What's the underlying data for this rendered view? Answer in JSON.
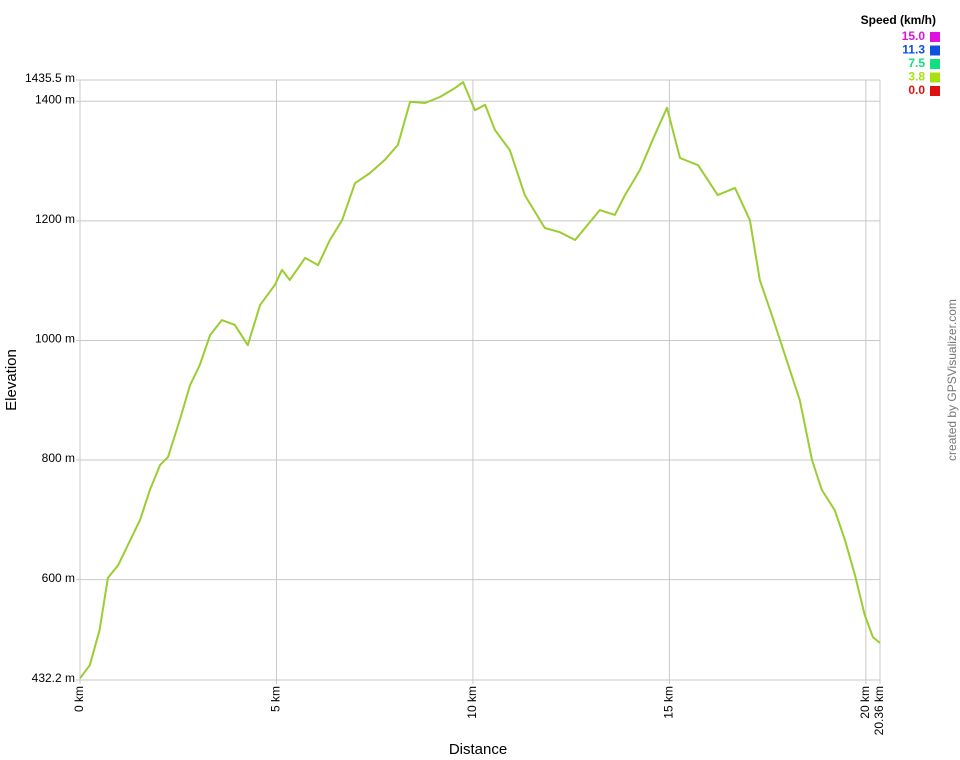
{
  "chart_data": {
    "type": "line",
    "x_label": "Distance",
    "y_label": "Elevation",
    "credit": "created by GPSVisualizer.com",
    "x": [
      0,
      0.25,
      0.5,
      0.71,
      0.97,
      1.22,
      1.53,
      1.78,
      2.04,
      2.24,
      2.54,
      2.8,
      3.05,
      3.31,
      3.61,
      3.94,
      4.27,
      4.58,
      4.96,
      5.14,
      5.34,
      5.73,
      6.06,
      6.36,
      6.67,
      7.0,
      7.38,
      7.76,
      8.09,
      8.4,
      8.78,
      9.16,
      9.54,
      9.75,
      10.05,
      10.31,
      10.56,
      10.94,
      11.32,
      11.83,
      12.21,
      12.6,
      13.23,
      13.61,
      13.87,
      14.25,
      14.63,
      14.94,
      15.27,
      15.73,
      16.23,
      16.67,
      17.05,
      17.3,
      17.61,
      17.94,
      18.32,
      18.63,
      18.88,
      19.21,
      19.47,
      19.72,
      19.97,
      20.18,
      20.36
    ],
    "series": [
      {
        "color": "#9acd32",
        "values": [
          435,
          457,
          516,
          603,
          624,
          658,
          700,
          750,
          792,
          805,
          867,
          925,
          959,
          1009,
          1034,
          1026,
          992,
          1059,
          1093,
          1118,
          1101,
          1138,
          1126,
          1168,
          1201,
          1263,
          1280,
          1302,
          1327,
          1399,
          1397,
          1407,
          1422,
          1432,
          1385,
          1394,
          1352,
          1318,
          1243,
          1188,
          1181,
          1168,
          1218,
          1210,
          1243,
          1285,
          1344,
          1389,
          1305,
          1293,
          1243,
          1255,
          1201,
          1101,
          1042,
          976,
          900,
          800,
          750,
          716,
          666,
          608,
          541,
          504,
          494
        ]
      }
    ],
    "xlim": [
      0,
      20.36
    ],
    "ylim": [
      432.2,
      1435.5
    ],
    "xticks": [
      {
        "value": 0,
        "label": "0 km"
      },
      {
        "value": 5,
        "label": "5 km"
      },
      {
        "value": 10,
        "label": "10 km"
      },
      {
        "value": 15,
        "label": "15 km"
      },
      {
        "value": 20,
        "label": "20 km"
      },
      {
        "value": 20.36,
        "label": "20.36 km"
      }
    ],
    "yticks": [
      {
        "value": 432.2,
        "label": "432.2 m"
      },
      {
        "value": 600,
        "label": "600 m"
      },
      {
        "value": 800,
        "label": "800 m"
      },
      {
        "value": 1000,
        "label": "1000 m"
      },
      {
        "value": 1200,
        "label": "1200 m"
      },
      {
        "value": 1400,
        "label": "1400 m"
      },
      {
        "value": 1435.5,
        "label": "1435.5 m"
      }
    ],
    "grid": true,
    "color_scale": {
      "title": "Speed (km/h)",
      "stops": [
        {
          "value": 15,
          "label": "15.0",
          "color": "#e010e0"
        },
        {
          "value": 11.3,
          "label": "11.3",
          "color": "#1050e0"
        },
        {
          "value": 7.5,
          "label": "7.5",
          "color": "#10e080"
        },
        {
          "value": 3.8,
          "label": "3.8",
          "color": "#a8e010"
        },
        {
          "value": 0,
          "label": "0.0",
          "color": "#e01010"
        }
      ]
    }
  }
}
